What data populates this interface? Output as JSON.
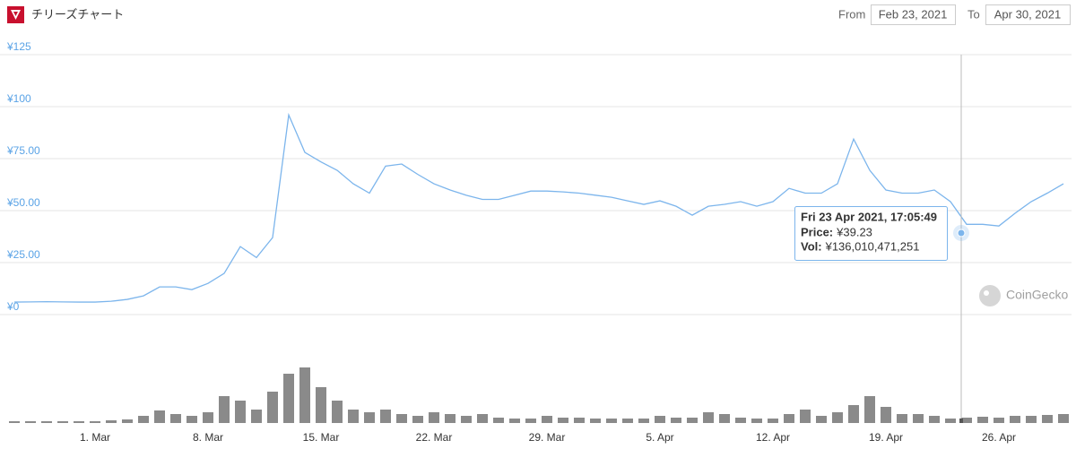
{
  "header": {
    "title": "チリーズチャート",
    "from_label": "From",
    "from_date": "Feb 23, 2021",
    "to_label": "To",
    "to_date": "Apr 30, 2021"
  },
  "watermark": "CoinGecko",
  "chart_data": [
    {
      "type": "line",
      "color": "#7cb5ec",
      "x": [
        "24. Feb",
        "25. Feb",
        "26. Feb",
        "27. Feb",
        "28. Feb",
        "1. Mar",
        "2. Mar",
        "3. Mar",
        "4. Mar",
        "5. Mar",
        "6. Mar",
        "7. Mar",
        "8. Mar",
        "9. Mar",
        "10. Mar",
        "11. Mar",
        "12. Mar",
        "13. Mar",
        "14. Mar",
        "15. Mar",
        "16. Mar",
        "17. Mar",
        "18. Mar",
        "19. Mar",
        "20. Mar",
        "21. Mar",
        "22. Mar",
        "23. Mar",
        "24. Mar",
        "25. Mar",
        "26. Mar",
        "27. Mar",
        "28. Mar",
        "29. Mar",
        "30. Mar",
        "31. Mar",
        "1. Apr",
        "2. Apr",
        "3. Apr",
        "4. Apr",
        "5. Apr",
        "6. Apr",
        "7. Apr",
        "8. Apr",
        "9. Apr",
        "10. Apr",
        "11. Apr",
        "12. Apr",
        "13. Apr",
        "14. Apr",
        "15. Apr",
        "16. Apr",
        "17. Apr",
        "18. Apr",
        "19. Apr",
        "20. Apr",
        "21. Apr",
        "22. Apr",
        "23. Apr",
        "24. Apr",
        "25. Apr",
        "26. Apr",
        "27. Apr",
        "28. Apr",
        "29. Apr",
        "30. Apr"
      ],
      "values": [
        6.0,
        6.1,
        6.2,
        6.1,
        6.0,
        6.0,
        6.4,
        7.3,
        9.0,
        13.3,
        13.3,
        12.0,
        15.0,
        19.8,
        32.7,
        27.4,
        37.0,
        96.0,
        78.0,
        73.4,
        69.4,
        62.9,
        58.4,
        71.4,
        72.4,
        67.4,
        62.9,
        59.9,
        57.4,
        55.4,
        55.4,
        57.4,
        59.4,
        59.4,
        59.0,
        58.4,
        57.4,
        56.4,
        54.7,
        53.0,
        54.7,
        52.1,
        47.8,
        52.1,
        53.0,
        54.3,
        52.1,
        54.3,
        60.7,
        58.4,
        58.4,
        62.9,
        84.4,
        69.4,
        59.9,
        58.4,
        58.4,
        59.9,
        54.3,
        43.4,
        43.4,
        42.6,
        48.7,
        54.3,
        58.4,
        62.9
      ],
      "ylim": [
        0,
        125
      ],
      "yticks": [
        {
          "value": 0,
          "label": "¥0"
        },
        {
          "value": 25,
          "label": "¥25.00"
        },
        {
          "value": 50,
          "label": "¥50.00"
        },
        {
          "value": 75,
          "label": "¥75.00"
        },
        {
          "value": 100,
          "label": "¥100"
        },
        {
          "value": 125,
          "label": "¥125"
        }
      ],
      "grid": true,
      "tooltip": {
        "title": "Fri 23 Apr 2021, 17:05:49",
        "price_label": "Price:",
        "price": {
          "value": 39.23,
          "label": "¥39.23"
        },
        "vol_label": "Vol:",
        "volume": {
          "value": 136010471251,
          "label": "¥136,010,471,251"
        }
      }
    },
    {
      "type": "bar",
      "color": "#8a8a8a",
      "x": [
        "24. Feb",
        "25. Feb",
        "26. Feb",
        "27. Feb",
        "28. Feb",
        "1. Mar",
        "2. Mar",
        "3. Mar",
        "4. Mar",
        "5. Mar",
        "6. Mar",
        "7. Mar",
        "8. Mar",
        "9. Mar",
        "10. Mar",
        "11. Mar",
        "12. Mar",
        "13. Mar",
        "14. Mar",
        "15. Mar",
        "16. Mar",
        "17. Mar",
        "18. Mar",
        "19. Mar",
        "20. Mar",
        "21. Mar",
        "22. Mar",
        "23. Mar",
        "24. Mar",
        "25. Mar",
        "26. Mar",
        "27. Mar",
        "28. Mar",
        "29. Mar",
        "30. Mar",
        "31. Mar",
        "1. Apr",
        "2. Apr",
        "3. Apr",
        "4. Apr",
        "5. Apr",
        "6. Apr",
        "7. Apr",
        "8. Apr",
        "9. Apr",
        "10. Apr",
        "11. Apr",
        "12. Apr",
        "13. Apr",
        "14. Apr",
        "15. Apr",
        "16. Apr",
        "17. Apr",
        "18. Apr",
        "19. Apr",
        "20. Apr",
        "21. Apr",
        "22. Apr",
        "23. Apr",
        "24. Apr",
        "25. Apr",
        "26. Apr",
        "27. Apr",
        "28. Apr",
        "29. Apr",
        "30. Apr"
      ],
      "values": [
        54000000000.0,
        54000000000.0,
        54000000000.0,
        54000000000.0,
        54000000000.0,
        54000000000.0,
        81000000000.0,
        108000000000.0,
        216000000000.0,
        378000000000.0,
        270000000000.0,
        216000000000.0,
        324000000000.0,
        810000000000.0,
        675000000000.0,
        405000000000.0,
        945000000000.0,
        1485000000000.0,
        1674000000000.0,
        1080000000000.0,
        675000000000.0,
        405000000000.0,
        324000000000.0,
        405000000000.0,
        270000000000.0,
        216000000000.0,
        324000000000.0,
        270000000000.0,
        216000000000.0,
        270000000000.0,
        162000000000.0,
        135000000000.0,
        135000000000.0,
        216000000000.0,
        162000000000.0,
        162000000000.0,
        135000000000.0,
        135000000000.0,
        135000000000.0,
        135000000000.0,
        216000000000.0,
        162000000000.0,
        162000000000.0,
        324000000000.0,
        270000000000.0,
        162000000000.0,
        135000000000.0,
        135000000000.0,
        270000000000.0,
        405000000000.0,
        216000000000.0,
        324000000000.0,
        540000000000.0,
        810000000000.0,
        486000000000.0,
        270000000000.0,
        270000000000.0,
        216000000000.0,
        135000000000.0,
        162000000000.0,
        189000000000.0,
        162000000000.0,
        216000000000.0,
        216000000000.0,
        243000000000.0,
        270000000000.0
      ],
      "ylim": [
        0,
        2700000000000.0
      ],
      "xticks": [
        "1. Mar",
        "8. Mar",
        "15. Mar",
        "22. Mar",
        "29. Mar",
        "5. Apr",
        "12. Apr",
        "19. Apr",
        "26. Apr"
      ]
    }
  ]
}
